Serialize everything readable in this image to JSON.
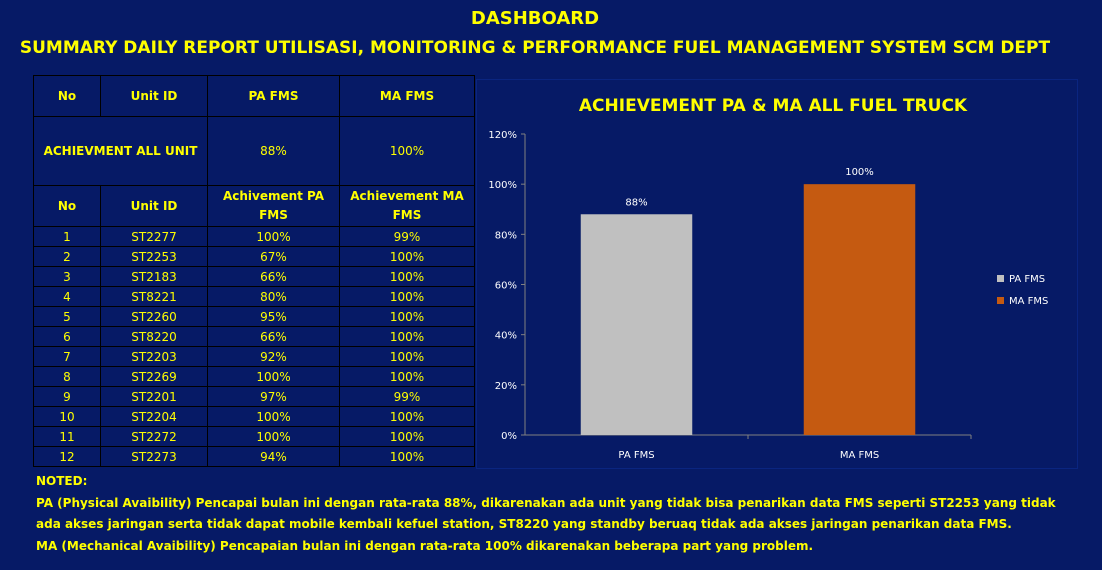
{
  "header": {
    "title": "DASHBOARD",
    "subtitle": "SUMMARY DAILY REPORT UTILISASI, MONITORING & PERFORMANCE FUEL MANAGEMENT SYSTEM SCM DEPT"
  },
  "table": {
    "header1": {
      "no": "No",
      "unit_id": "Unit ID",
      "pa": "PA FMS",
      "ma": "MA FMS"
    },
    "summary": {
      "label": "ACHIEVMENT ALL UNIT",
      "pa": "88%",
      "ma": "100%"
    },
    "header2": {
      "no": "No",
      "unit_id": "Unit ID",
      "pa": "Achivement PA FMS",
      "ma": "Achievement MA FMS"
    },
    "rows": [
      {
        "no": "1",
        "unit": "ST2277",
        "pa": "100%",
        "ma": "99%"
      },
      {
        "no": "2",
        "unit": "ST2253",
        "pa": "67%",
        "ma": "100%"
      },
      {
        "no": "3",
        "unit": "ST2183",
        "pa": "66%",
        "ma": "100%"
      },
      {
        "no": "4",
        "unit": "ST8221",
        "pa": "80%",
        "ma": "100%"
      },
      {
        "no": "5",
        "unit": "ST2260",
        "pa": "95%",
        "ma": "100%"
      },
      {
        "no": "6",
        "unit": "ST8220",
        "pa": "66%",
        "ma": "100%"
      },
      {
        "no": "7",
        "unit": "ST2203",
        "pa": "92%",
        "ma": "100%"
      },
      {
        "no": "8",
        "unit": "ST2269",
        "pa": "100%",
        "ma": "100%"
      },
      {
        "no": "9",
        "unit": "ST2201",
        "pa": "97%",
        "ma": "99%"
      },
      {
        "no": "10",
        "unit": "ST2204",
        "pa": "100%",
        "ma": "100%"
      },
      {
        "no": "11",
        "unit": "ST2272",
        "pa": "100%",
        "ma": "100%"
      },
      {
        "no": "12",
        "unit": "ST2273",
        "pa": "94%",
        "ma": "100%"
      }
    ]
  },
  "chart_data": {
    "type": "bar",
    "title": "ACHIEVEMENT PA & MA ALL FUEL TRUCK",
    "categories": [
      "PA FMS",
      "MA FMS"
    ],
    "values": [
      88,
      100
    ],
    "data_labels": [
      "88%",
      "100%"
    ],
    "colors": [
      "#c0c0c0",
      "#c55a11"
    ],
    "legend": [
      "PA FMS",
      "MA FMS"
    ],
    "legend_position": "right",
    "ylim": [
      0,
      120
    ],
    "yticks": [
      0,
      20,
      40,
      60,
      80,
      100,
      120
    ],
    "ytick_labels": [
      "0%",
      "20%",
      "40%",
      "60%",
      "80%",
      "100%",
      "120%"
    ],
    "xlabel": "",
    "ylabel": "",
    "grid": false
  },
  "notes": {
    "heading": "NOTED:",
    "line1": "PA (Physical Avaibility) Pencapai bulan ini dengan rata-rata 88%, dikarenakan ada unit yang tidak bisa penarikan data FMS seperti ST2253 yang tidak",
    "line2": "ada akses jaringan serta tidak dapat mobile kembali kefuel station, ST8220 yang standby beruaq tidak ada akses jaringan penarikan data FMS.",
    "line3": "MA (Mechanical Avaibility) Pencapaian bulan ini dengan rata-rata 100% dikarenakan beberapa part yang problem."
  },
  "colors": {
    "background": "#061a66",
    "text": "#ffff00",
    "chart_text": "#ffffff"
  }
}
